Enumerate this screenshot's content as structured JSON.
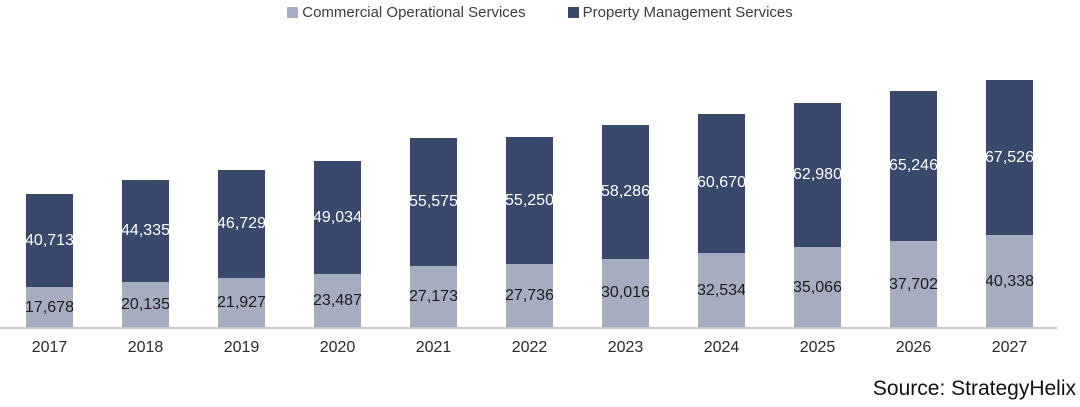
{
  "chart_data": {
    "type": "bar",
    "stacked": true,
    "title": "",
    "xlabel": "",
    "ylabel": "",
    "gridlines": false,
    "legend_position": "top",
    "axis_line_color": "#c7c7c7",
    "categories": [
      "2017",
      "2018",
      "2019",
      "2020",
      "2021",
      "2022",
      "2023",
      "2024",
      "2025",
      "2026",
      "2027"
    ],
    "series": [
      {
        "name": "Commercial Operational Services",
        "color": "#a6adc0",
        "label_color": "#1c1c1c",
        "values": [
          17678,
          20135,
          21927,
          23487,
          27173,
          27736,
          30016,
          32534,
          35066,
          37702,
          40338
        ]
      },
      {
        "name": "Property Management Services",
        "color": "#39496b",
        "label_color": "#ffffff",
        "values": [
          40713,
          44335,
          46729,
          49034,
          55575,
          55250,
          58286,
          60670,
          62980,
          65246,
          67526
        ]
      }
    ],
    "totals": [
      58391,
      64470,
      68656,
      72521,
      82748,
      82986,
      88302,
      93204,
      98046,
      102948,
      107864
    ],
    "value_format": "#,###"
  },
  "source": {
    "label": "Source: StrategyHelix"
  }
}
